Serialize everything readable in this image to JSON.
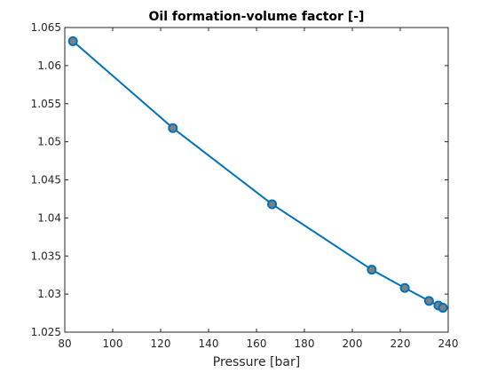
{
  "chart_data": {
    "type": "line",
    "title": "Oil formation-volume factor [-]",
    "xlabel": "Pressure [bar]",
    "ylabel": "",
    "xlim": [
      80,
      240
    ],
    "ylim": [
      1.025,
      1.065
    ],
    "x_ticks": [
      "80",
      "100",
      "120",
      "140",
      "160",
      "180",
      "200",
      "220",
      "240"
    ],
    "y_ticks": [
      "1.025",
      "1.03",
      "1.035",
      "1.04",
      "1.045",
      "1.05",
      "1.055",
      "1.06",
      "1.065"
    ],
    "grid": false,
    "line_color": "#0072BD",
    "marker_edge_color": "#0072BD",
    "marker_face_color": "#808080",
    "series": [
      {
        "x": [
          83.4,
          125.1,
          166.5,
          208.1,
          221.9,
          232.0,
          235.9,
          237.8
        ],
        "y": [
          1.0632,
          1.0518,
          1.0418,
          1.0332,
          1.0308,
          1.0291,
          1.0285,
          1.0282
        ]
      }
    ]
  }
}
